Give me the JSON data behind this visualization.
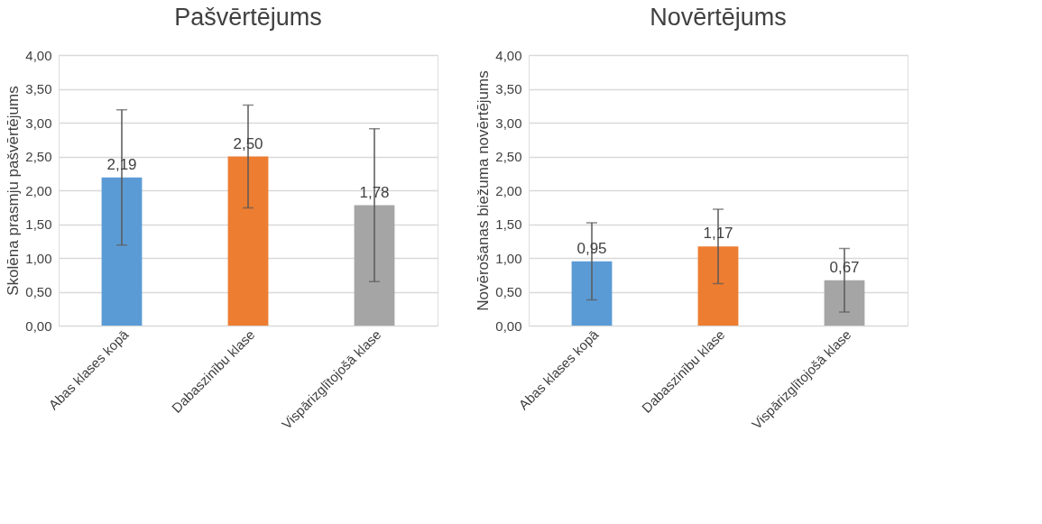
{
  "chart_data": [
    {
      "type": "bar",
      "title": "Pašvērtējums",
      "ylabel": "Skolēna prasmju pašvērtējums",
      "categories": [
        "Abas klases kopā",
        "Dabaszinību klase",
        "Vispārizglītojošā klase"
      ],
      "values": [
        2.19,
        2.5,
        1.78
      ],
      "colors": [
        "#5b9bd5",
        "#ed7d31",
        "#a5a5a5"
      ],
      "errors": [
        1.0,
        0.76,
        1.13
      ],
      "value_labels": [
        "2,19",
        "2,50",
        "1,78"
      ],
      "ylim": [
        0,
        4
      ],
      "yticks": [
        {
          "value": 0,
          "label": "0,00"
        },
        {
          "value": 0.5,
          "label": "0,50"
        },
        {
          "value": 1,
          "label": "1,00"
        },
        {
          "value": 1.5,
          "label": "1,50"
        },
        {
          "value": 2,
          "label": "2,00"
        },
        {
          "value": 2.5,
          "label": "2,50"
        },
        {
          "value": 3,
          "label": "3,00"
        },
        {
          "value": 3.5,
          "label": "3,50"
        },
        {
          "value": 4,
          "label": "4,00"
        }
      ],
      "grid": "y"
    },
    {
      "type": "bar",
      "title": "Novērtējums",
      "ylabel": "Novērošanas biežuma novērtējums",
      "categories": [
        "Abas klases kopā",
        "Dabaszinību klase",
        "Vispārizglītojošā klase"
      ],
      "values": [
        0.95,
        1.17,
        0.67
      ],
      "colors": [
        "#5b9bd5",
        "#ed7d31",
        "#a5a5a5"
      ],
      "errors": [
        0.57,
        0.55,
        0.47
      ],
      "value_labels": [
        "0,95",
        "1,17",
        "0,67"
      ],
      "ylim": [
        0,
        4
      ],
      "yticks": [
        {
          "value": 0,
          "label": "0,00"
        },
        {
          "value": 0.5,
          "label": "0,50"
        },
        {
          "value": 1,
          "label": "1,00"
        },
        {
          "value": 1.5,
          "label": "1,50"
        },
        {
          "value": 2,
          "label": "2,00"
        },
        {
          "value": 2.5,
          "label": "2,50"
        },
        {
          "value": 3,
          "label": "3,00"
        },
        {
          "value": 3.5,
          "label": "3,50"
        },
        {
          "value": 4,
          "label": "4,00"
        }
      ],
      "grid": "y"
    }
  ]
}
